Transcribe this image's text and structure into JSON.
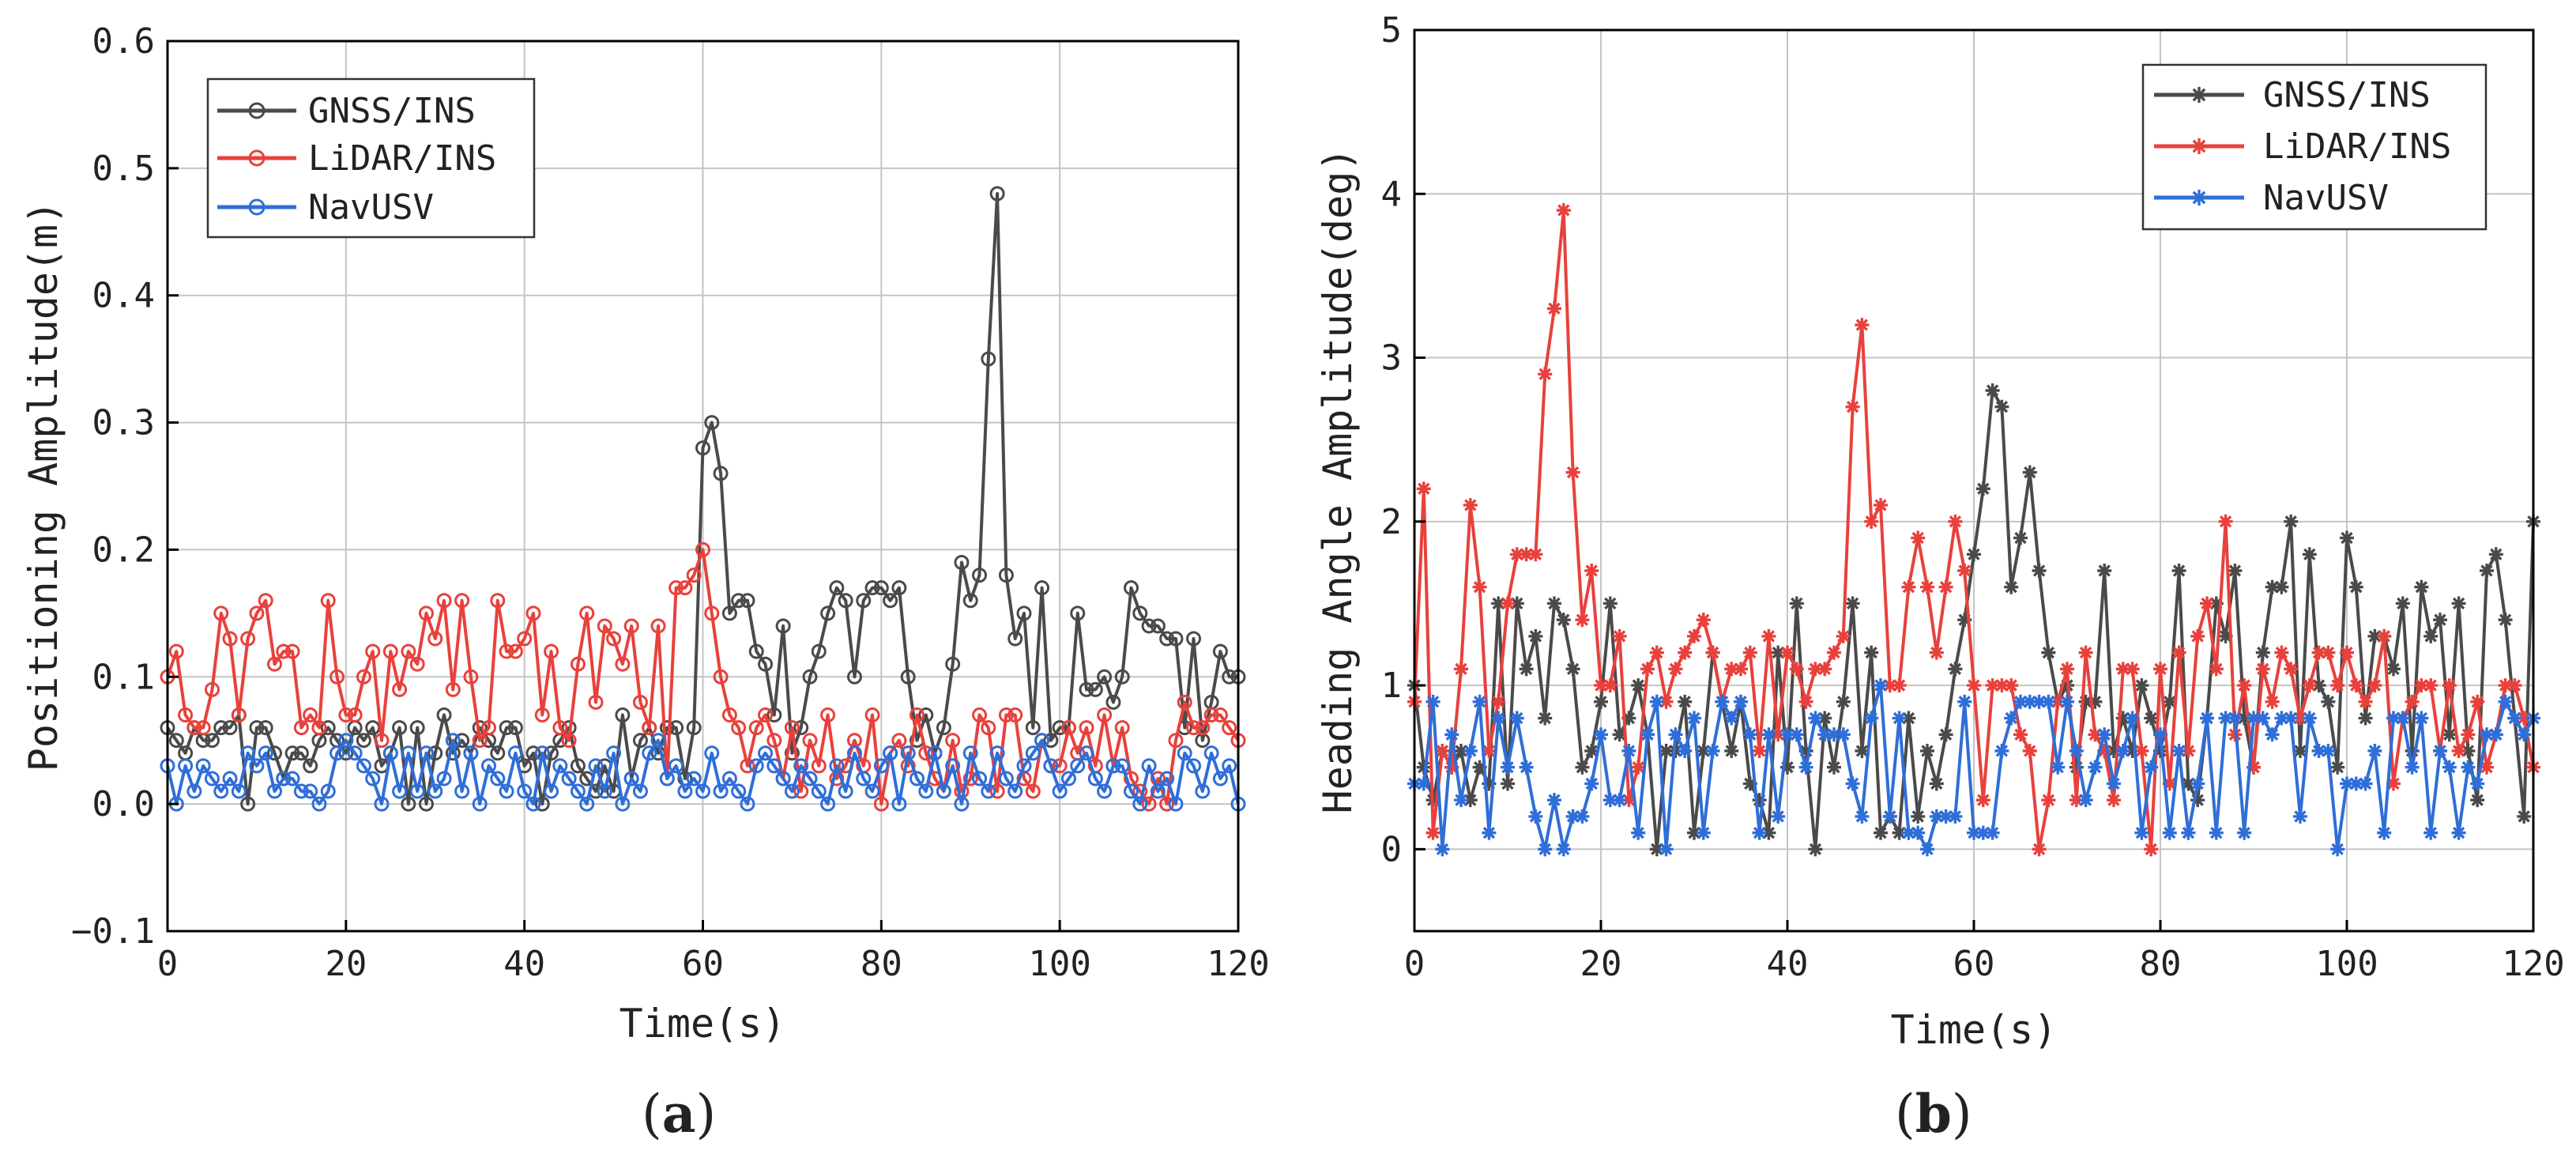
{
  "chart_data": [
    {
      "type": "line",
      "panel_label": "(a)",
      "panel_letter": "a",
      "panel_open": "(",
      "panel_close": ")",
      "title": "",
      "xlabel": "Time(s)",
      "ylabel": "Positioning Amplitude(m)",
      "xlim": [
        0,
        120
      ],
      "ylim": [
        -0.1,
        0.6
      ],
      "xticks": [
        0,
        20,
        40,
        60,
        80,
        100,
        120
      ],
      "yticks": [
        -0.1,
        0.0,
        0.1,
        0.2,
        0.3,
        0.4,
        0.5,
        0.6
      ],
      "ytick_labels": [
        "−0.1",
        "0.0",
        "0.1",
        "0.2",
        "0.3",
        "0.4",
        "0.5",
        "0.6"
      ],
      "grid": true,
      "marker": "circle",
      "legend_position": "top-left",
      "x": [
        0,
        1,
        2,
        3,
        4,
        5,
        6,
        7,
        8,
        9,
        10,
        11,
        12,
        13,
        14,
        15,
        16,
        17,
        18,
        19,
        20,
        21,
        22,
        23,
        24,
        25,
        26,
        27,
        28,
        29,
        30,
        31,
        32,
        33,
        34,
        35,
        36,
        37,
        38,
        39,
        40,
        41,
        42,
        43,
        44,
        45,
        46,
        47,
        48,
        49,
        50,
        51,
        52,
        53,
        54,
        55,
        56,
        57,
        58,
        59,
        60,
        61,
        62,
        63,
        64,
        65,
        66,
        67,
        68,
        69,
        70,
        71,
        72,
        73,
        74,
        75,
        76,
        77,
        78,
        79,
        80,
        81,
        82,
        83,
        84,
        85,
        86,
        87,
        88,
        89,
        90,
        91,
        92,
        93,
        94,
        95,
        96,
        97,
        98,
        99,
        100,
        101,
        102,
        103,
        104,
        105,
        106,
        107,
        108,
        109,
        110,
        111,
        112,
        113,
        114,
        115,
        116,
        117,
        118,
        119,
        120
      ],
      "series": [
        {
          "name": "GNSS/INS",
          "color": "#4a4a4a",
          "values": [
            0.06,
            0.05,
            0.04,
            0.06,
            0.05,
            0.05,
            0.06,
            0.06,
            0.07,
            0.0,
            0.06,
            0.06,
            0.04,
            0.02,
            0.04,
            0.04,
            0.03,
            0.05,
            0.06,
            0.05,
            0.04,
            0.06,
            0.05,
            0.06,
            0.03,
            0.04,
            0.06,
            0.0,
            0.06,
            0.0,
            0.04,
            0.07,
            0.04,
            0.05,
            0.04,
            0.06,
            0.05,
            0.04,
            0.06,
            0.06,
            0.03,
            0.04,
            0.0,
            0.04,
            0.05,
            0.06,
            0.03,
            0.02,
            0.01,
            0.03,
            0.01,
            0.07,
            0.02,
            0.05,
            0.06,
            0.04,
            0.06,
            0.06,
            0.02,
            0.06,
            0.28,
            0.3,
            0.26,
            0.15,
            0.16,
            0.16,
            0.12,
            0.11,
            0.07,
            0.14,
            0.04,
            0.06,
            0.1,
            0.12,
            0.15,
            0.17,
            0.16,
            0.1,
            0.16,
            0.17,
            0.17,
            0.16,
            0.17,
            0.1,
            0.05,
            0.07,
            0.04,
            0.06,
            0.11,
            0.19,
            0.16,
            0.18,
            0.35,
            0.48,
            0.18,
            0.13,
            0.15,
            0.06,
            0.17,
            0.05,
            0.06,
            0.06,
            0.15,
            0.09,
            0.09,
            0.1,
            0.08,
            0.1,
            0.17,
            0.15,
            0.14,
            0.14,
            0.13,
            0.13,
            0.06,
            0.13,
            0.05,
            0.08,
            0.12,
            0.1,
            0.1
          ]
        },
        {
          "name": "LiDAR/INS",
          "color": "#e8413c",
          "values": [
            0.1,
            0.12,
            0.07,
            0.06,
            0.06,
            0.09,
            0.15,
            0.13,
            0.07,
            0.13,
            0.15,
            0.16,
            0.11,
            0.12,
            0.12,
            0.06,
            0.07,
            0.06,
            0.16,
            0.1,
            0.07,
            0.07,
            0.1,
            0.12,
            0.05,
            0.12,
            0.09,
            0.12,
            0.11,
            0.15,
            0.13,
            0.16,
            0.09,
            0.16,
            0.1,
            0.05,
            0.06,
            0.16,
            0.12,
            0.12,
            0.13,
            0.15,
            0.07,
            0.12,
            0.06,
            0.05,
            0.11,
            0.15,
            0.08,
            0.14,
            0.13,
            0.11,
            0.14,
            0.08,
            0.06,
            0.14,
            0.02,
            0.17,
            0.17,
            0.18,
            0.2,
            0.15,
            0.1,
            0.07,
            0.06,
            0.03,
            0.06,
            0.07,
            0.05,
            0.02,
            0.06,
            0.01,
            0.05,
            0.03,
            0.07,
            0.02,
            0.03,
            0.05,
            0.03,
            0.07,
            0.0,
            0.04,
            0.05,
            0.03,
            0.07,
            0.04,
            0.02,
            0.01,
            0.05,
            0.01,
            0.02,
            0.07,
            0.06,
            0.01,
            0.07,
            0.07,
            0.02,
            0.01,
            0.05,
            0.03,
            0.03,
            0.06,
            0.04,
            0.06,
            0.03,
            0.07,
            0.03,
            0.06,
            0.02,
            0.01,
            0.0,
            0.02,
            0.0,
            0.05,
            0.08,
            0.06,
            0.06,
            0.07,
            0.07,
            0.06,
            0.05
          ]
        },
        {
          "name": "NavUSV",
          "color": "#2f6ed8",
          "values": [
            0.03,
            0.0,
            0.03,
            0.01,
            0.03,
            0.02,
            0.01,
            0.02,
            0.01,
            0.04,
            0.03,
            0.04,
            0.01,
            0.02,
            0.02,
            0.01,
            0.01,
            0.0,
            0.01,
            0.04,
            0.05,
            0.04,
            0.03,
            0.02,
            0.0,
            0.04,
            0.01,
            0.04,
            0.01,
            0.04,
            0.01,
            0.02,
            0.05,
            0.01,
            0.04,
            0.0,
            0.03,
            0.02,
            0.01,
            0.04,
            0.01,
            0.0,
            0.04,
            0.01,
            0.03,
            0.02,
            0.01,
            0.0,
            0.03,
            0.01,
            0.04,
            0.0,
            0.02,
            0.01,
            0.04,
            0.05,
            0.02,
            0.03,
            0.01,
            0.02,
            0.01,
            0.04,
            0.01,
            0.02,
            0.01,
            0.0,
            0.03,
            0.04,
            0.03,
            0.02,
            0.01,
            0.03,
            0.02,
            0.01,
            0.0,
            0.03,
            0.01,
            0.04,
            0.02,
            0.01,
            0.03,
            0.04,
            0.0,
            0.04,
            0.02,
            0.01,
            0.04,
            0.01,
            0.03,
            0.0,
            0.04,
            0.02,
            0.01,
            0.04,
            0.02,
            0.01,
            0.03,
            0.04,
            0.05,
            0.03,
            0.01,
            0.02,
            0.03,
            0.04,
            0.02,
            0.01,
            0.03,
            0.03,
            0.01,
            0.0,
            0.03,
            0.01,
            0.02,
            0.0,
            0.04,
            0.03,
            0.01,
            0.04,
            0.02,
            0.03,
            0.0
          ]
        }
      ]
    },
    {
      "type": "line",
      "panel_label": "(b)",
      "panel_letter": "b",
      "panel_open": "(",
      "panel_close": ")",
      "title": "",
      "xlabel": "Time(s)",
      "ylabel": "Heading Angle Amplitude(deg)",
      "xlim": [
        0,
        120
      ],
      "ylim": [
        -0.5,
        5
      ],
      "xticks": [
        0,
        20,
        40,
        60,
        80,
        100,
        120
      ],
      "yticks": [
        0,
        1,
        2,
        3,
        4,
        5
      ],
      "ytick_labels": [
        "0",
        "1",
        "2",
        "3",
        "4",
        "5"
      ],
      "grid": true,
      "marker": "asterisk",
      "legend_position": "top-right",
      "x": [
        0,
        1,
        2,
        3,
        4,
        5,
        6,
        7,
        8,
        9,
        10,
        11,
        12,
        13,
        14,
        15,
        16,
        17,
        18,
        19,
        20,
        21,
        22,
        23,
        24,
        25,
        26,
        27,
        28,
        29,
        30,
        31,
        32,
        33,
        34,
        35,
        36,
        37,
        38,
        39,
        40,
        41,
        42,
        43,
        44,
        45,
        46,
        47,
        48,
        49,
        50,
        51,
        52,
        53,
        54,
        55,
        56,
        57,
        58,
        59,
        60,
        61,
        62,
        63,
        64,
        65,
        66,
        67,
        68,
        69,
        70,
        71,
        72,
        73,
        74,
        75,
        76,
        77,
        78,
        79,
        80,
        81,
        82,
        83,
        84,
        85,
        86,
        87,
        88,
        89,
        90,
        91,
        92,
        93,
        94,
        95,
        96,
        97,
        98,
        99,
        100,
        101,
        102,
        103,
        104,
        105,
        106,
        107,
        108,
        109,
        110,
        111,
        112,
        113,
        114,
        115,
        116,
        117,
        118,
        119,
        120
      ],
      "series": [
        {
          "name": "GNSS/INS",
          "color": "#4a4a4a",
          "values": [
            1.0,
            0.5,
            0.3,
            0.6,
            0.5,
            0.6,
            0.3,
            0.5,
            0.4,
            1.5,
            0.4,
            1.5,
            1.1,
            1.3,
            0.8,
            1.5,
            1.4,
            1.1,
            0.5,
            0.6,
            0.9,
            1.5,
            0.7,
            0.8,
            1.0,
            0.7,
            0.0,
            0.6,
            0.6,
            0.9,
            0.1,
            0.6,
            1.2,
            0.9,
            0.6,
            0.9,
            0.4,
            0.3,
            0.1,
            1.2,
            0.5,
            1.5,
            0.6,
            0.0,
            0.8,
            0.5,
            0.9,
            1.5,
            0.6,
            1.2,
            0.1,
            0.2,
            0.1,
            0.8,
            0.2,
            0.6,
            0.4,
            0.7,
            1.1,
            1.4,
            1.8,
            2.2,
            2.8,
            2.7,
            1.6,
            1.9,
            2.3,
            1.7,
            1.2,
            0.9,
            1.0,
            0.5,
            0.9,
            0.9,
            1.7,
            0.6,
            0.8,
            0.6,
            1.0,
            0.8,
            0.6,
            0.9,
            1.7,
            0.4,
            0.3,
            0.8,
            1.5,
            1.3,
            1.7,
            0.8,
            0.5,
            1.2,
            1.6,
            1.6,
            2.0,
            0.6,
            1.8,
            1.0,
            0.9,
            0.5,
            1.9,
            1.6,
            0.8,
            1.3,
            1.3,
            1.1,
            1.5,
            0.6,
            1.6,
            1.3,
            1.4,
            0.7,
            1.5,
            0.6,
            0.3,
            1.7,
            1.8,
            1.4,
            0.8,
            0.2,
            2.0
          ]
        },
        {
          "name": "LiDAR/INS",
          "color": "#e8413c",
          "values": [
            0.9,
            2.2,
            0.1,
            0.6,
            0.5,
            1.1,
            2.1,
            1.6,
            0.6,
            0.9,
            1.5,
            1.8,
            1.8,
            1.8,
            2.9,
            3.3,
            3.9,
            2.3,
            1.4,
            1.7,
            1.0,
            1.0,
            1.3,
            0.3,
            0.5,
            1.1,
            1.2,
            0.9,
            1.1,
            1.2,
            1.3,
            1.4,
            1.2,
            0.9,
            1.1,
            1.1,
            1.2,
            0.6,
            1.3,
            0.7,
            1.2,
            1.1,
            0.9,
            1.1,
            1.1,
            1.2,
            1.3,
            2.7,
            3.2,
            2.0,
            2.1,
            1.0,
            1.0,
            1.6,
            1.9,
            1.6,
            1.2,
            1.6,
            2.0,
            1.7,
            1.0,
            0.3,
            1.0,
            1.0,
            1.0,
            0.7,
            0.6,
            0.0,
            0.3,
            0.9,
            1.1,
            0.3,
            1.2,
            0.7,
            0.6,
            0.3,
            1.1,
            1.1,
            0.6,
            0.0,
            1.1,
            0.4,
            1.2,
            0.6,
            1.3,
            1.5,
            1.1,
            2.0,
            0.7,
            1.0,
            0.5,
            1.1,
            0.9,
            1.2,
            1.1,
            0.8,
            1.0,
            1.2,
            1.2,
            1.0,
            1.2,
            1.0,
            0.9,
            1.0,
            1.3,
            0.4,
            0.8,
            0.9,
            1.0,
            1.0,
            0.6,
            1.0,
            0.6,
            0.7,
            0.9,
            0.5,
            0.7,
            1.0,
            1.0,
            0.8,
            0.5
          ]
        },
        {
          "name": "NavUSV",
          "color": "#2f6ed8",
          "values": [
            0.4,
            0.4,
            0.9,
            0.0,
            0.7,
            0.3,
            0.6,
            0.9,
            0.1,
            0.8,
            0.5,
            0.8,
            0.5,
            0.2,
            0.0,
            0.3,
            0.0,
            0.2,
            0.2,
            0.4,
            0.7,
            0.3,
            0.3,
            0.6,
            0.1,
            0.7,
            0.9,
            0.0,
            0.7,
            0.6,
            0.8,
            0.1,
            0.6,
            0.9,
            0.8,
            0.9,
            0.7,
            0.1,
            0.7,
            0.2,
            0.7,
            0.7,
            0.5,
            0.8,
            0.7,
            0.7,
            0.7,
            0.4,
            0.2,
            0.8,
            1.0,
            0.2,
            0.8,
            0.1,
            0.1,
            0.0,
            0.2,
            0.2,
            0.2,
            0.9,
            0.1,
            0.1,
            0.1,
            0.6,
            0.8,
            0.9,
            0.9,
            0.9,
            0.9,
            0.5,
            0.9,
            0.6,
            0.3,
            0.5,
            0.7,
            0.4,
            0.6,
            0.8,
            0.1,
            0.5,
            0.7,
            0.1,
            0.6,
            0.1,
            0.4,
            0.8,
            0.1,
            0.8,
            0.8,
            0.1,
            0.8,
            0.8,
            0.7,
            0.8,
            0.8,
            0.2,
            0.8,
            0.6,
            0.6,
            0.0,
            0.4,
            0.4,
            0.4,
            0.6,
            0.1,
            0.8,
            0.8,
            0.5,
            0.8,
            0.1,
            0.6,
            0.5,
            0.1,
            0.5,
            0.4,
            0.7,
            0.7,
            0.9,
            0.8,
            0.7,
            0.8
          ]
        }
      ]
    }
  ]
}
